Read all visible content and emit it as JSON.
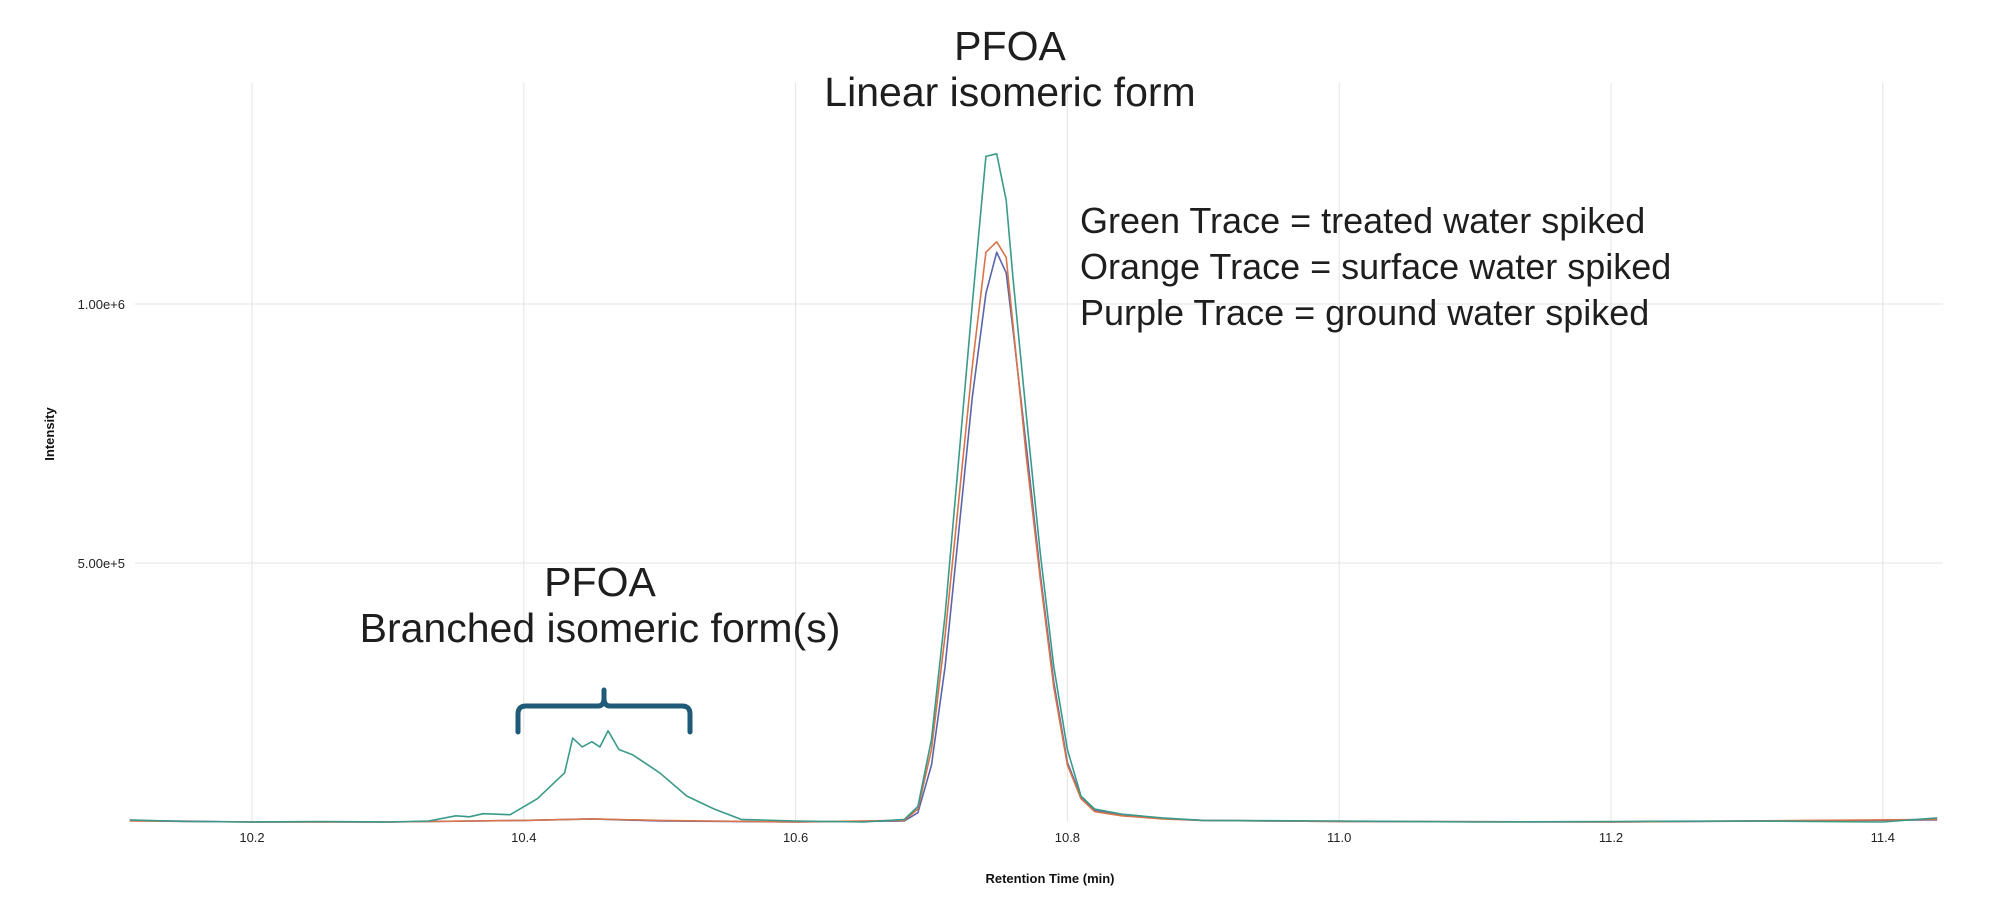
{
  "chart_data": {
    "type": "line",
    "title": "",
    "xlabel": "Retention Time (min)",
    "ylabel": "Intensity",
    "xlim": [
      10.11,
      11.45
    ],
    "ylim": [
      0,
      1450000.0
    ],
    "x_ticks": [
      "10.2",
      "10.4",
      "10.6",
      "10.8",
      "11.0",
      "11.2",
      "11.4"
    ],
    "x_tick_values": [
      10.2,
      10.4,
      10.6,
      10.8,
      11.0,
      11.2,
      11.4
    ],
    "y_ticks": [
      "5.00e+5",
      "1.00e+6"
    ],
    "y_tick_values": [
      500000,
      1000000
    ],
    "grid": true,
    "legend_position": "annotation text, upper right",
    "annotations": [
      {
        "text": "PFOA\nLinear isomeric form",
        "x": 10.74,
        "note": "above main peak"
      },
      {
        "text": "PFOA\nBranched isomeric form(s)",
        "x": 10.45,
        "note": "with brace spanning 10.39–10.52"
      },
      {
        "text": "Green Trace = treated water spiked"
      },
      {
        "text": "Orange Trace = surface water spiked"
      },
      {
        "text": "Purple Trace = ground water spiked"
      }
    ],
    "series": [
      {
        "name": "Green Trace (treated water spiked)",
        "color": "#3a9a8a",
        "x": [
          10.11,
          10.15,
          10.2,
          10.25,
          10.3,
          10.33,
          10.35,
          10.36,
          10.37,
          10.38,
          10.39,
          10.41,
          10.43,
          10.436,
          10.443,
          10.45,
          10.456,
          10.462,
          10.47,
          10.48,
          10.5,
          10.52,
          10.54,
          10.56,
          10.6,
          10.65,
          10.68,
          10.69,
          10.7,
          10.71,
          10.72,
          10.73,
          10.74,
          10.748,
          10.755,
          10.76,
          10.77,
          10.78,
          10.79,
          10.8,
          10.81,
          10.82,
          10.84,
          10.87,
          10.9,
          11.0,
          11.1,
          11.2,
          11.3,
          11.4,
          11.44
        ],
        "values": [
          4000,
          1000,
          0,
          1000,
          0,
          2000,
          12000,
          10000,
          16000,
          15000,
          14000,
          45000,
          95000,
          162000,
          145000,
          155000,
          145000,
          176000,
          140000,
          130000,
          95000,
          50000,
          25000,
          5000,
          2000,
          0,
          5000,
          30000,
          160000,
          400000,
          700000,
          1000000,
          1285000,
          1290000,
          1200000,
          1050000,
          780000,
          520000,
          300000,
          140000,
          50000,
          25000,
          15000,
          8000,
          3000,
          2000,
          0,
          1000,
          2000,
          0,
          8000
        ]
      },
      {
        "name": "Orange Trace (surface water spiked)",
        "color": "#d9734a",
        "x": [
          10.11,
          10.2,
          10.3,
          10.4,
          10.45,
          10.5,
          10.6,
          10.68,
          10.69,
          10.7,
          10.71,
          10.72,
          10.73,
          10.74,
          10.748,
          10.755,
          10.76,
          10.77,
          10.78,
          10.79,
          10.8,
          10.81,
          10.82,
          10.84,
          10.87,
          10.9,
          11.0,
          11.2,
          11.44
        ],
        "values": [
          2000,
          0,
          0,
          3000,
          6000,
          3000,
          0,
          3000,
          25000,
          140000,
          360000,
          620000,
          880000,
          1100000,
          1120000,
          1090000,
          960000,
          700000,
          470000,
          260000,
          110000,
          45000,
          20000,
          12000,
          6000,
          3000,
          1000,
          0,
          5000
        ]
      },
      {
        "name": "Purple Trace (ground water spiked)",
        "color": "#5a66aa",
        "x": [
          10.11,
          10.2,
          10.3,
          10.4,
          10.45,
          10.5,
          10.6,
          10.68,
          10.69,
          10.7,
          10.71,
          10.72,
          10.73,
          10.74,
          10.748,
          10.755,
          10.76,
          10.77,
          10.78,
          10.79,
          10.8,
          10.81,
          10.82,
          10.84,
          10.87,
          10.9,
          11.0,
          11.2,
          11.44
        ],
        "values": [
          3000,
          0,
          0,
          3000,
          6000,
          2000,
          0,
          2000,
          18000,
          110000,
          300000,
          560000,
          820000,
          1020000,
          1100000,
          1060000,
          950000,
          720000,
          480000,
          270000,
          115000,
          48000,
          22000,
          13000,
          7000,
          3000,
          1000,
          0,
          4000
        ]
      }
    ]
  },
  "annotations": {
    "linear": {
      "line1": "PFOA",
      "line2": "Linear isomeric form"
    },
    "branched": {
      "line1": "PFOA",
      "line2": "Branched isomeric form(s)"
    },
    "brace_color": "#1f5a78"
  },
  "legend": {
    "green": "Green Trace = treated water spiked",
    "orange": "Orange Trace = surface water spiked",
    "purple": "Purple Trace = ground water spiked"
  },
  "axes": {
    "xlabel": "Retention Time (min)",
    "ylabel": "Intensity"
  }
}
